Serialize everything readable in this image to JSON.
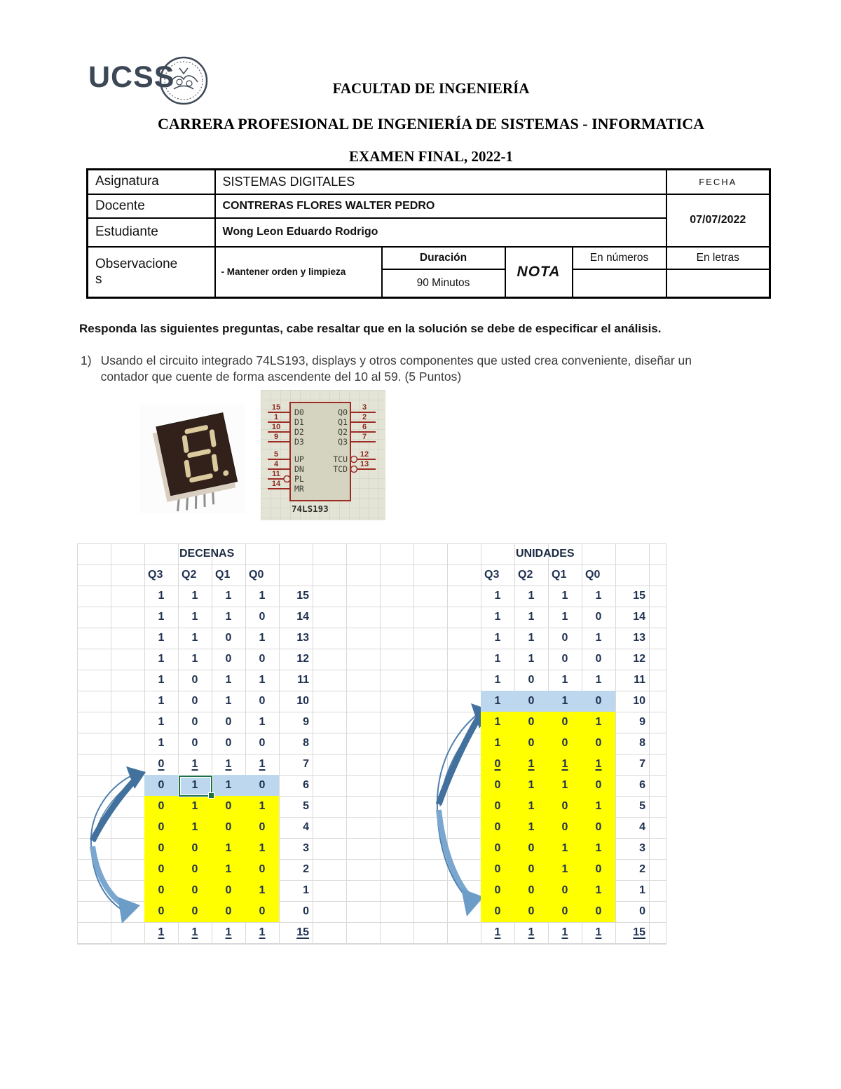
{
  "colors": {
    "row_yellow": "#ffff00",
    "row_blue": "#bdd7ee",
    "selection_green": "#1e7145",
    "arrow_dark_blue": "#41719c",
    "arrow_light_blue": "#7aa7cf",
    "digit_color": "#1f3150",
    "ic_red": "#9c2b24",
    "logo_color": "#3d4856"
  },
  "logo": {
    "text": "UCSS"
  },
  "titles": {
    "faculty": "FACULTAD DE INGENIERÍA",
    "career": "CARRERA PROFESIONAL DE INGENIERÍA DE SISTEMAS - INFORMATICA",
    "exam": "EXAMEN FINAL, 2022-1"
  },
  "info_table": {
    "asignatura_label": "Asignatura",
    "asignatura_value": "SISTEMAS DIGITALES",
    "fecha_label": "FECHA",
    "docente_label": "Docente",
    "docente_value": "CONTRERAS FLORES WALTER PEDRO",
    "estudiante_label": "Estudiante",
    "estudiante_value": "Wong Leon Eduardo Rodrigo",
    "fecha_value": "07/07/2022",
    "observaciones_label": "Observaciones",
    "observaciones_value": "- Mantener orden y limpieza",
    "duracion_label": "Duración",
    "duracion_value": "90 Minutos",
    "nota_label": "NOTA",
    "en_numeros_label": "En números",
    "en_letras_label": "En letras"
  },
  "intro": "Responda las siguientes preguntas, cabe resaltar que en la solución se debe de especificar el análisis.",
  "question1": {
    "number": "1)",
    "line1": "Usando el circuito integrado 74LS193, displays y otros componentes que usted crea conveniente, diseñar un",
    "line2": "contador que cuente de forma ascendente del 10 al 59. (5 Puntos)"
  },
  "ic": {
    "label": "74LS193",
    "left_pins": [
      {
        "num": "15",
        "name": "D0",
        "bubble": false
      },
      {
        "num": "1",
        "name": "D1",
        "bubble": false
      },
      {
        "num": "10",
        "name": "D2",
        "bubble": false
      },
      {
        "num": "9",
        "name": "D3",
        "bubble": false
      },
      {
        "num": "5",
        "name": "UP",
        "bubble": false
      },
      {
        "num": "4",
        "name": "DN",
        "bubble": false
      },
      {
        "num": "11",
        "name": "PL",
        "bubble": true
      },
      {
        "num": "14",
        "name": "MR",
        "bubble": false
      }
    ],
    "right_pins": [
      {
        "num": "3",
        "name": "Q0",
        "bubble": false
      },
      {
        "num": "2",
        "name": "Q1",
        "bubble": false
      },
      {
        "num": "6",
        "name": "Q2",
        "bubble": false
      },
      {
        "num": "7",
        "name": "Q3",
        "bubble": false
      },
      {
        "num": "12",
        "name": "TCU",
        "bubble": true
      },
      {
        "num": "13",
        "name": "TCD",
        "bubble": true
      }
    ]
  },
  "sheet": {
    "tables": [
      {
        "id": "decenas",
        "title": "DECENAS",
        "headers": [
          "Q3",
          "Q2",
          "Q1",
          "Q0"
        ],
        "base_col": 2,
        "rows": [
          {
            "bits": "1111",
            "dec": "15"
          },
          {
            "bits": "1110",
            "dec": "14"
          },
          {
            "bits": "1101",
            "dec": "13"
          },
          {
            "bits": "1100",
            "dec": "12"
          },
          {
            "bits": "1011",
            "dec": "11"
          },
          {
            "bits": "1010",
            "dec": "10"
          },
          {
            "bits": "1001",
            "dec": "9"
          },
          {
            "bits": "1000",
            "dec": "8"
          },
          {
            "bits": "0111",
            "dec": "7"
          },
          {
            "bits": "0110",
            "dec": "6"
          },
          {
            "bits": "0101",
            "dec": "5"
          },
          {
            "bits": "0100",
            "dec": "4"
          },
          {
            "bits": "0011",
            "dec": "3"
          },
          {
            "bits": "0010",
            "dec": "2"
          },
          {
            "bits": "0001",
            "dec": "1"
          },
          {
            "bits": "0000",
            "dec": "0"
          },
          {
            "bits": "1111",
            "dec": "15"
          }
        ],
        "blue_row": 9,
        "yellow_from": 10,
        "yellow_to": 15,
        "underline_rows": [
          8,
          16
        ],
        "dec_underline_rows": [
          16
        ],
        "active_cell": {
          "row": 9,
          "col": 1
        }
      },
      {
        "id": "unidades",
        "title": "UNIDADES",
        "headers": [
          "Q3",
          "Q2",
          "Q1",
          "Q0"
        ],
        "base_col": 12,
        "rows": [
          {
            "bits": "1111",
            "dec": "15"
          },
          {
            "bits": "1110",
            "dec": "14"
          },
          {
            "bits": "1101",
            "dec": "13"
          },
          {
            "bits": "1100",
            "dec": "12"
          },
          {
            "bits": "1011",
            "dec": "11"
          },
          {
            "bits": "1010",
            "dec": "10"
          },
          {
            "bits": "1001",
            "dec": "9"
          },
          {
            "bits": "1000",
            "dec": "8"
          },
          {
            "bits": "0111",
            "dec": "7"
          },
          {
            "bits": "0110",
            "dec": "6"
          },
          {
            "bits": "0101",
            "dec": "5"
          },
          {
            "bits": "0100",
            "dec": "4"
          },
          {
            "bits": "0011",
            "dec": "3"
          },
          {
            "bits": "0010",
            "dec": "2"
          },
          {
            "bits": "0001",
            "dec": "1"
          },
          {
            "bits": "0000",
            "dec": "0"
          },
          {
            "bits": "1111",
            "dec": "15"
          }
        ],
        "blue_row": 5,
        "yellow_from": 6,
        "yellow_to": 15,
        "underline_rows": [
          8,
          16
        ],
        "dec_underline_rows": [
          16
        ]
      }
    ]
  }
}
